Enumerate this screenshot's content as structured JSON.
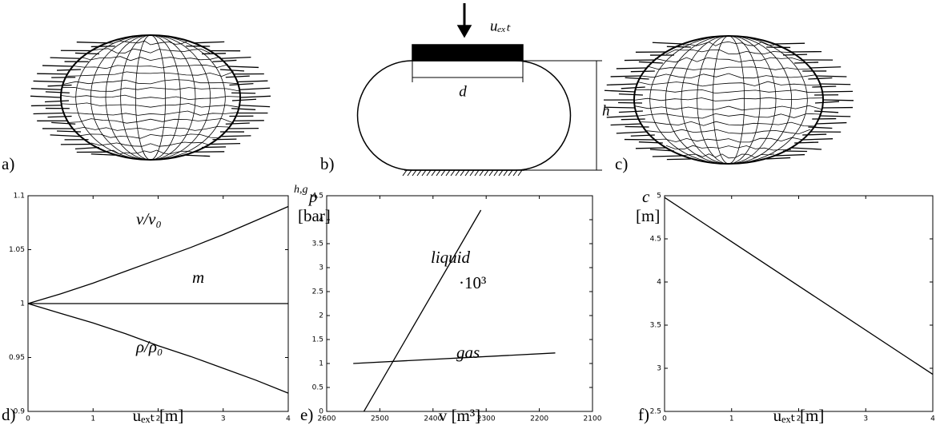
{
  "panels": {
    "a": "a)",
    "b": "b)",
    "c": "c)"
  },
  "schematic": {
    "load": "uₑₓₜ",
    "width": "d",
    "height": "h"
  },
  "chart_data": [
    {
      "type": "line",
      "panel": "d)",
      "xlabel": "uₑₓₜ [m]",
      "xlim": [
        0,
        4
      ],
      "ylim": [
        0.9,
        1.1
      ],
      "xticks": [
        0,
        1,
        2,
        3,
        4
      ],
      "yticks": [
        0.9,
        0.95,
        1,
        1.05,
        1.1
      ],
      "series": [
        {
          "name": "v/v₀",
          "color": "#000000",
          "x": [
            0,
            0.5,
            1,
            1.5,
            2,
            2.5,
            3,
            3.5,
            4
          ],
          "values": [
            1,
            1.009,
            1.019,
            1.03,
            1.041,
            1.052,
            1.064,
            1.077,
            1.09
          ]
        },
        {
          "name": "m",
          "color": "#000000",
          "x": [
            0,
            4
          ],
          "values": [
            1,
            1
          ]
        },
        {
          "name": "ρ/ρ₀",
          "color": "#000000",
          "x": [
            0,
            0.5,
            1,
            1.5,
            2,
            2.5,
            3,
            3.5,
            4
          ],
          "values": [
            1,
            0.991,
            0.982,
            0.972,
            0.961,
            0.951,
            0.94,
            0.929,
            0.917
          ]
        }
      ]
    },
    {
      "type": "line",
      "panel": "e)",
      "xlabel": "v [m³]",
      "ylabel_superscript": "h,g",
      "ylabel": "p",
      "yunit": "[bar]",
      "annotation": "·10³",
      "xlim": [
        2600,
        2100
      ],
      "ylim": [
        0,
        4.5
      ],
      "xticks": [
        2600,
        2500,
        2400,
        2300,
        2200,
        2100
      ],
      "yticks": [
        0,
        0.5,
        1,
        1.5,
        2,
        2.5,
        3,
        3.5,
        4,
        4.5
      ],
      "series": [
        {
          "name": "liquid",
          "color": "#000000",
          "x": [
            2530,
            2310
          ],
          "values": [
            0,
            4.2
          ]
        },
        {
          "name": "gas",
          "color": "#000000",
          "x": [
            2550,
            2170
          ],
          "values": [
            1,
            1.22
          ]
        }
      ]
    },
    {
      "type": "line",
      "panel": "f)",
      "xlabel": "uₑₓₜ [m]",
      "ylabel": "c",
      "yunit": "[m]",
      "xlim": [
        0,
        4
      ],
      "ylim": [
        2.5,
        5
      ],
      "xticks": [
        0,
        1,
        2,
        3,
        4
      ],
      "yticks": [
        2.5,
        3,
        3.5,
        4,
        4.5,
        5
      ],
      "series": [
        {
          "color": "#000000",
          "x": [
            0,
            4
          ],
          "values": [
            4.98,
            2.93
          ]
        }
      ]
    }
  ]
}
